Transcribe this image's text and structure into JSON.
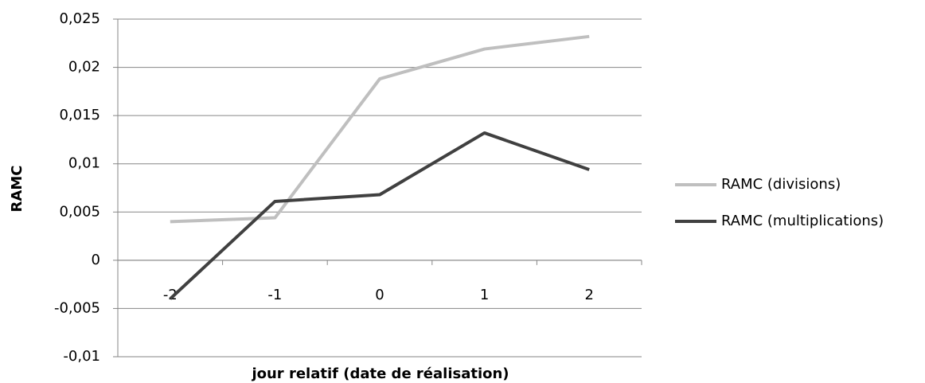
{
  "chart_data": {
    "type": "line",
    "y_axis_label": "RAMC",
    "x_axis_label": "jour relatif (date de réalisation)",
    "categories": [
      "-2",
      "-1",
      "0",
      "1",
      "2"
    ],
    "series": [
      {
        "name": "RAMC (divisions)",
        "color": "#bfbfbf",
        "values": [
          0.004,
          0.0044,
          0.0188,
          0.0219,
          0.0232
        ]
      },
      {
        "name": "RAMC (multiplications)",
        "color": "#404040",
        "values": [
          -0.004,
          0.0061,
          0.0068,
          0.0132,
          0.0094
        ]
      }
    ],
    "ylim": [
      -0.01,
      0.025
    ],
    "yticks": [
      {
        "value": -0.01,
        "label": "-0,01"
      },
      {
        "value": -0.005,
        "label": "-0,005"
      },
      0,
      {
        "value": 0.005,
        "label": "0,005"
      },
      {
        "value": 0.01,
        "label": "0,01"
      },
      {
        "value": 0.015,
        "label": "0,015"
      },
      {
        "value": 0.02,
        "label": "0,02"
      },
      {
        "value": 0.025,
        "label": "0,025"
      }
    ],
    "grid": true,
    "legend": "right"
  }
}
